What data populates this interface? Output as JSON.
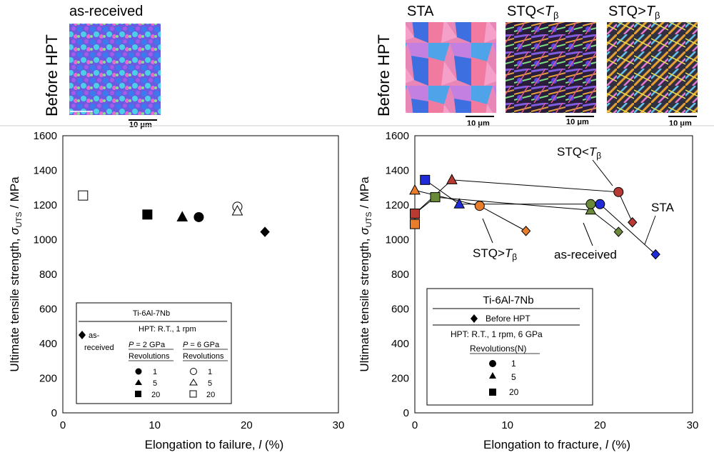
{
  "top_labels": {
    "before_hpt_left": "Before HPT",
    "before_hpt_right": "Before HPT",
    "as_received": "as-received",
    "sta": "STA",
    "stq_lt_prefix": "STQ<",
    "stq_gt_prefix": "STQ>",
    "t_symbol": "T",
    "beta": "β",
    "scale_bar": "10 μm"
  },
  "colors": {
    "orange": "#e87d2c",
    "blue": "#1f2bd6",
    "red": "#b83a32",
    "brown": "#b8503c",
    "green": "#6a8a3a",
    "black": "#000000"
  },
  "chart_data": [
    {
      "type": "scatter",
      "xlabel_main": "Elongation to failure, ",
      "xlabel_var": "l",
      "xlabel_unit": " (%)",
      "ylabel_main": "Ultimate tensile strength, ",
      "ylabel_sigma": "σ",
      "ylabel_sub": "UTS",
      "ylabel_unit": " / MPa",
      "xlim": [
        0,
        30
      ],
      "ylim": [
        0,
        1600
      ],
      "xticks": [
        "0",
        "10",
        "20",
        "30"
      ],
      "yticks": [
        "0",
        "200",
        "400",
        "600",
        "800",
        "1000",
        "1200",
        "1400",
        "1600"
      ],
      "legend": {
        "title": "Ti-6Al-7Nb",
        "as_received": "as-",
        "as_received2": "received",
        "hpt": "HPT: R.T., 1 rpm",
        "p2_prefix": "P",
        "p2_suffix": " = 2 GPa",
        "p6_prefix": "P",
        "p6_suffix": " = 6 GPa",
        "rev": "Revolutions",
        "r1": "1",
        "r5": "5",
        "r20": "20"
      },
      "points": [
        {
          "x": 2.2,
          "y": 1255,
          "marker": "square",
          "fill": "open"
        },
        {
          "x": 9.2,
          "y": 1145,
          "marker": "square",
          "fill": "solid"
        },
        {
          "x": 13.0,
          "y": 1130,
          "marker": "triangle",
          "fill": "solid"
        },
        {
          "x": 14.8,
          "y": 1130,
          "marker": "circle",
          "fill": "solid"
        },
        {
          "x": 19.0,
          "y": 1190,
          "marker": "circle",
          "fill": "open"
        },
        {
          "x": 19.0,
          "y": 1165,
          "marker": "triangle",
          "fill": "open"
        },
        {
          "x": 22.0,
          "y": 1045,
          "marker": "diamond",
          "fill": "solid"
        }
      ]
    },
    {
      "type": "scatter",
      "xlabel_main": "Elongation to fracture, ",
      "xlabel_var": "l",
      "xlabel_unit": " (%)",
      "ylabel_main": "Ultimate tensile strength, ",
      "ylabel_sigma": "σ",
      "ylabel_sub": "UTS",
      "ylabel_unit": " / MPa",
      "xlim": [
        0,
        30
      ],
      "ylim": [
        0,
        1600
      ],
      "xticks": [
        "0",
        "10",
        "20",
        "30"
      ],
      "yticks": [
        "0",
        "200",
        "400",
        "600",
        "800",
        "1000",
        "1200",
        "1400",
        "1600"
      ],
      "legend": {
        "title": "Ti-6Al-7Nb",
        "before": "Before HPT",
        "hpt": "HPT: R.T., 1 rpm, 6 GPa",
        "rev": "Revolutions(N)",
        "r1": "1",
        "r5": "5",
        "r20": "20"
      },
      "annotations": {
        "stq_lt": "STQ<",
        "sta": "STA",
        "stq_gt": "STQ>",
        "as_received": "as-received"
      },
      "series": [
        {
          "name": "as-received",
          "color": "green",
          "points": [
            {
              "x": 0.0,
              "y": 1150,
              "marker": "square"
            },
            {
              "x": 2.2,
              "y": 1245,
              "marker": "square"
            },
            {
              "x": 19.0,
              "y": 1170,
              "marker": "triangle"
            },
            {
              "x": 19.0,
              "y": 1205,
              "marker": "circle"
            },
            {
              "x": 22.0,
              "y": 1045,
              "marker": "diamond"
            }
          ]
        },
        {
          "name": "STA",
          "color": "blue",
          "points": [
            {
              "x": 1.1,
              "y": 1345,
              "marker": "square"
            },
            {
              "x": 4.8,
              "y": 1205,
              "marker": "triangle"
            },
            {
              "x": 20.0,
              "y": 1205,
              "marker": "circle"
            },
            {
              "x": 26.0,
              "y": 915,
              "marker": "diamond"
            }
          ]
        },
        {
          "name": "STQ<",
          "color": "red",
          "points": [
            {
              "x": 0.0,
              "y": 1150,
              "marker": "square"
            },
            {
              "x": 4.0,
              "y": 1345,
              "marker": "triangle"
            },
            {
              "x": 22.0,
              "y": 1275,
              "marker": "circle"
            },
            {
              "x": 23.5,
              "y": 1100,
              "marker": "diamond"
            }
          ]
        },
        {
          "name": "STQ>",
          "color": "orange",
          "points": [
            {
              "x": 0.0,
              "y": 1090,
              "marker": "square"
            },
            {
              "x": 0.0,
              "y": 1285,
              "marker": "triangle"
            },
            {
              "x": 7.0,
              "y": 1195,
              "marker": "circle"
            },
            {
              "x": 12.0,
              "y": 1050,
              "marker": "diamond"
            }
          ]
        }
      ]
    }
  ]
}
